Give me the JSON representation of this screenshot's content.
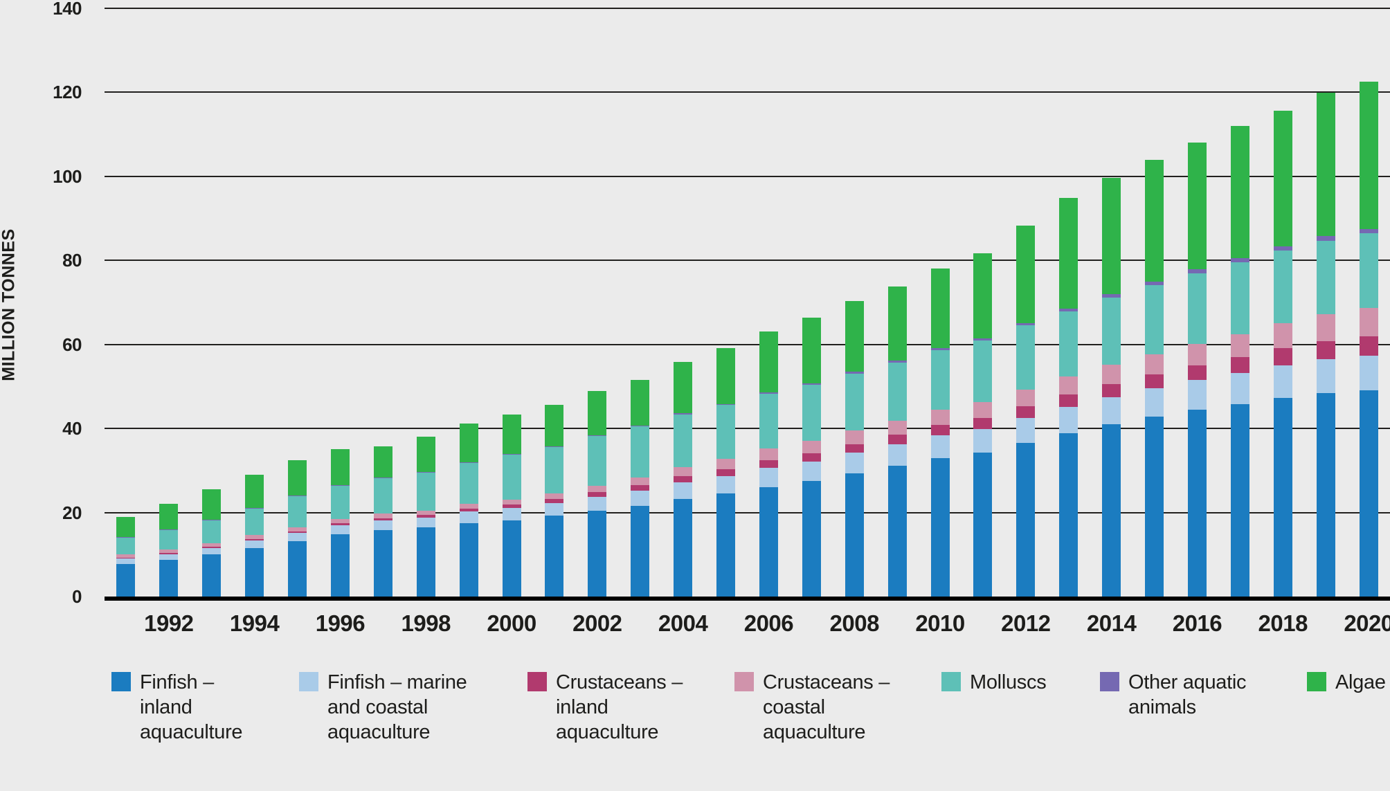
{
  "colors": {
    "background": "#ebebeb",
    "gridline": "#21201e",
    "axis": "#000000",
    "text": "#1d1d1b"
  },
  "y_axis": {
    "title": "MILLION TONNES",
    "ticks": [
      0,
      20,
      40,
      60,
      80,
      100,
      120,
      140
    ]
  },
  "x_axis": {
    "tick_years": [
      "1992",
      "1994",
      "1996",
      "1998",
      "2000",
      "2002",
      "2004",
      "2006",
      "2008",
      "2010",
      "2012",
      "2014",
      "2016",
      "2018",
      "2020"
    ]
  },
  "legend": {
    "items": [
      {
        "key": "finfish_inland",
        "color": "#1b7cc0",
        "label_lines": [
          "Finfish –",
          "inland",
          "aquaculture"
        ]
      },
      {
        "key": "finfish_marine",
        "color": "#a9cbe8",
        "label_lines": [
          "Finfish – marine",
          "and coastal",
          "aquaculture"
        ]
      },
      {
        "key": "crust_inland",
        "color": "#b13a6e",
        "label_lines": [
          "Crustaceans –",
          "inland",
          "aquaculture"
        ]
      },
      {
        "key": "crust_coastal",
        "color": "#d093ab",
        "label_lines": [
          "Crustaceans –",
          "coastal",
          "aquaculture"
        ]
      },
      {
        "key": "molluscs",
        "color": "#5ec0b7",
        "label_lines": [
          "Molluscs"
        ]
      },
      {
        "key": "other_aquatic",
        "color": "#7569b2",
        "label_lines": [
          "Other aquatic",
          "animals"
        ]
      },
      {
        "key": "algae",
        "color": "#2fb34a",
        "label_lines": [
          "Algae"
        ]
      }
    ]
  },
  "chart_data": {
    "type": "bar",
    "stacked": true,
    "title": "",
    "xlabel": "",
    "ylabel": "MILLION TONNES",
    "ylim": [
      0,
      140
    ],
    "grid": true,
    "legend_position": "bottom",
    "unit": "million tonnes",
    "x": [
      1991,
      1992,
      1993,
      1994,
      1995,
      1996,
      1997,
      1998,
      1999,
      2000,
      2001,
      2002,
      2003,
      2004,
      2005,
      2006,
      2007,
      2008,
      2009,
      2010,
      2011,
      2012,
      2013,
      2014,
      2015,
      2016,
      2017,
      2018,
      2019,
      2020
    ],
    "series": [
      {
        "key": "finfish_inland",
        "name": "Finfish – inland aquaculture",
        "color": "#1b7cc0",
        "values": [
          7.8,
          8.8,
          10.0,
          11.6,
          13.2,
          14.9,
          15.8,
          16.4,
          17.5,
          18.2,
          19.2,
          20.5,
          21.6,
          23.2,
          24.5,
          26.1,
          27.5,
          29.4,
          31.1,
          33.0,
          34.3,
          36.6,
          38.9,
          41.0,
          42.8,
          44.5,
          45.8,
          47.3,
          48.5,
          49.1
        ]
      },
      {
        "key": "finfish_marine",
        "name": "Finfish – marine and coastal aquaculture",
        "color": "#a9cbe8",
        "values": [
          1.2,
          1.3,
          1.5,
          1.7,
          1.9,
          2.1,
          2.3,
          2.4,
          2.7,
          2.9,
          3.1,
          3.3,
          3.6,
          3.9,
          4.2,
          4.5,
          4.7,
          4.9,
          5.2,
          5.4,
          5.6,
          5.9,
          6.2,
          6.5,
          6.8,
          7.0,
          7.4,
          7.7,
          8.0,
          8.3
        ]
      },
      {
        "key": "crust_inland",
        "name": "Crustaceans – inland aquaculture",
        "color": "#b13a6e",
        "values": [
          0.2,
          0.25,
          0.3,
          0.35,
          0.4,
          0.45,
          0.5,
          0.6,
          0.7,
          0.8,
          0.9,
          1.1,
          1.3,
          1.5,
          1.6,
          1.8,
          1.9,
          2.0,
          2.2,
          2.4,
          2.6,
          2.8,
          3.0,
          3.1,
          3.3,
          3.5,
          3.8,
          4.1,
          4.3,
          4.5
        ]
      },
      {
        "key": "crust_coastal",
        "name": "Crustaceans – coastal aquaculture",
        "color": "#d093ab",
        "values": [
          0.8,
          0.9,
          0.9,
          1.0,
          1.0,
          1.0,
          1.1,
          1.1,
          1.2,
          1.2,
          1.4,
          1.5,
          1.9,
          2.2,
          2.5,
          2.8,
          3.0,
          3.2,
          3.4,
          3.6,
          3.8,
          4.0,
          4.2,
          4.5,
          4.8,
          5.1,
          5.5,
          6.0,
          6.4,
          6.8
        ]
      },
      {
        "key": "molluscs",
        "name": "Molluscs",
        "color": "#5ec0b7",
        "values": [
          4.0,
          4.7,
          5.5,
          6.4,
          7.4,
          8.0,
          8.6,
          9.1,
          9.7,
          10.7,
          11.1,
          11.8,
          12.2,
          12.6,
          12.8,
          13.1,
          13.3,
          13.5,
          13.8,
          14.2,
          14.7,
          15.2,
          15.5,
          16.1,
          16.4,
          16.9,
          17.1,
          17.3,
          17.5,
          17.7
        ]
      },
      {
        "key": "other_aquatic",
        "name": "Other aquatic animals",
        "color": "#7569b2",
        "values": [
          0.1,
          0.1,
          0.1,
          0.1,
          0.1,
          0.1,
          0.1,
          0.1,
          0.1,
          0.1,
          0.1,
          0.1,
          0.1,
          0.2,
          0.2,
          0.3,
          0.4,
          0.5,
          0.5,
          0.5,
          0.5,
          0.6,
          0.7,
          0.8,
          0.9,
          0.9,
          1.0,
          1.0,
          1.1,
          1.1
        ]
      },
      {
        "key": "algae",
        "name": "Algae",
        "color": "#2fb34a",
        "values": [
          4.8,
          6.1,
          7.3,
          7.9,
          8.4,
          8.5,
          7.4,
          8.3,
          9.2,
          9.4,
          9.8,
          10.6,
          10.9,
          12.2,
          13.4,
          14.5,
          15.6,
          16.8,
          17.6,
          19.0,
          20.2,
          23.2,
          26.3,
          27.7,
          29.0,
          30.1,
          31.4,
          32.3,
          34.1,
          35.1
        ]
      }
    ]
  }
}
